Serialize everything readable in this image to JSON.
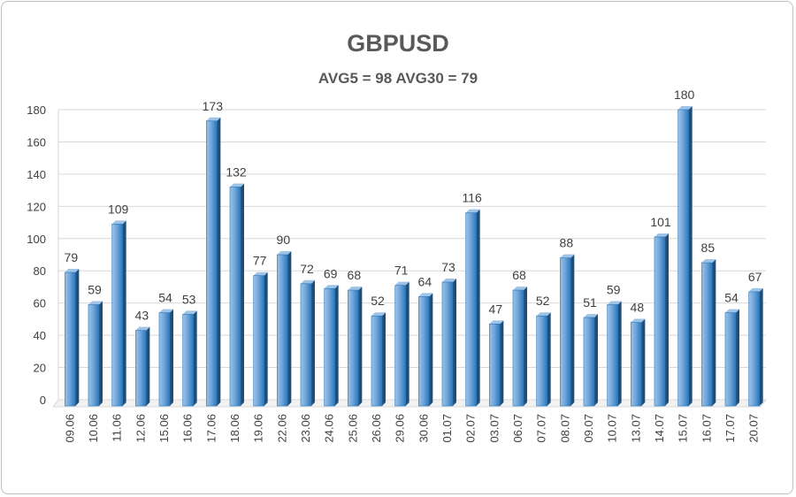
{
  "chart_data": {
    "type": "bar",
    "title": "GBPUSD",
    "subtitle": "AVG5 = 98 AVG30 = 79",
    "xlabel": "",
    "ylabel": "",
    "ylim": [
      0,
      180
    ],
    "yticks": [
      "0",
      "20",
      "40",
      "60",
      "80",
      "100",
      "120",
      "140",
      "160",
      "180"
    ],
    "grid": true,
    "legend": "none",
    "categories": [
      "09.06",
      "10.06",
      "11.06",
      "12.06",
      "15.06",
      "16.06",
      "17.06",
      "18.06",
      "19.06",
      "22.06",
      "23.06",
      "24.06",
      "25.06",
      "26.06",
      "29.06",
      "30.06",
      "01.07",
      "02.07",
      "03.07",
      "06.07",
      "07.07",
      "08.07",
      "09.07",
      "10.07",
      "13.07",
      "14.07",
      "15.07",
      "16.07",
      "17.07",
      "20.07"
    ],
    "values": [
      79,
      59,
      109,
      43,
      54,
      53,
      173,
      132,
      77,
      90,
      72,
      69,
      68,
      52,
      71,
      64,
      73,
      116,
      47,
      68,
      52,
      88,
      51,
      59,
      48,
      101,
      180,
      85,
      54,
      67
    ],
    "colors": {
      "bar_light": "#9DC3E6",
      "bar_main": "#5B9BD5",
      "bar_dark": "#2E75B6",
      "bar_side": "#1F4E79",
      "grid": "#D9D9D9",
      "text": "#404040",
      "title": "#595959"
    }
  }
}
